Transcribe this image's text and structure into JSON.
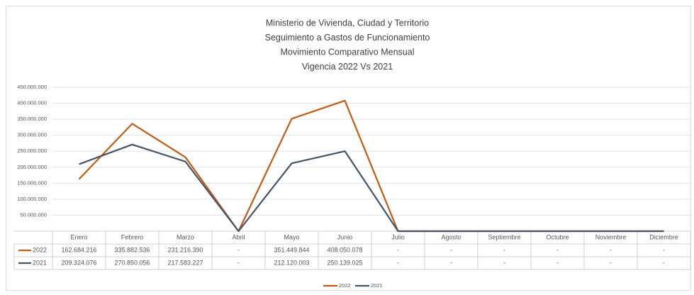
{
  "chart_data": {
    "type": "line",
    "title": [
      "Ministerio de Vivienda, Ciudad y Territorio",
      "Seguimiento a Gastos de Funcionamiento",
      "Movimiento Comparativo Mensual",
      "Vigencia 2022 Vs 2021"
    ],
    "categories": [
      "Enero",
      "Febrero",
      "Marzo",
      "Abril",
      "Mayo",
      "Junio",
      "Julio",
      "Agosto",
      "Septiembre",
      "Octubre",
      "Noviembre",
      "Diciembre"
    ],
    "series": [
      {
        "name": "2022",
        "color": "#c55a11",
        "values": [
          162684216,
          335882536,
          231216390,
          0,
          351449844,
          408050078,
          0,
          0,
          0,
          0,
          0,
          0
        ],
        "value_labels": [
          "162.684.216",
          "335.882.536",
          "231.216.390",
          "-",
          "351.449.844",
          "408.050.078",
          "-",
          "-",
          "-",
          "-",
          "-",
          "-"
        ]
      },
      {
        "name": "2021",
        "color": "#44546a",
        "values": [
          209324076,
          270850056,
          217583227,
          0,
          212120003,
          250139025,
          0,
          0,
          0,
          0,
          0,
          0
        ],
        "value_labels": [
          "209.324.076",
          "270.850.056",
          "217.583.227",
          "-",
          "212.120.003",
          "250.139.025",
          "-",
          "-",
          "-",
          "-",
          "-",
          "-"
        ]
      }
    ],
    "ylim": [
      0,
      450000000
    ],
    "yticks": [
      {
        "value": 0,
        "label": "-"
      },
      {
        "value": 50000000,
        "label": "50.000.000"
      },
      {
        "value": 100000000,
        "label": "100.000.000"
      },
      {
        "value": 150000000,
        "label": "150.000.000"
      },
      {
        "value": 200000000,
        "label": "200.000.000"
      },
      {
        "value": 250000000,
        "label": "250.000.000"
      },
      {
        "value": 300000000,
        "label": "300.000.000"
      },
      {
        "value": 350000000,
        "label": "350.000.000"
      },
      {
        "value": 400000000,
        "label": "400.000.000"
      },
      {
        "value": 450000000,
        "label": "450.000.000"
      }
    ],
    "grid": true,
    "legend": "bottom"
  }
}
